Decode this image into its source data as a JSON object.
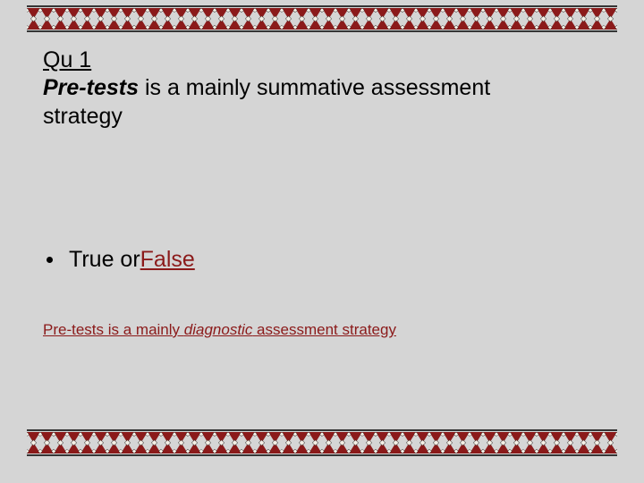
{
  "slide": {
    "background_color": "#d5d5d5",
    "border_pattern": {
      "colors": {
        "line": "#000000",
        "triangle_fill": "#8b1a1a",
        "diamond_fill": "#f5f0e6",
        "background": "#d5d5d5"
      },
      "unit_width": 30,
      "band_height": 30
    },
    "heading": {
      "line1": "Qu 1",
      "line2_emph": "Pre-tests",
      "line2_rest": " is a mainly summative assessment",
      "line3": "strategy",
      "fontsize": 25,
      "color": "#000000"
    },
    "bullet": {
      "prefix": "True or ",
      "false_word": "False",
      "fontsize": 25,
      "false_color": "#8b1a1a"
    },
    "answer": {
      "pre": "Pre-tests is a mainly ",
      "emph": "diagnostic",
      "post": " assessment strategy",
      "fontsize": 17,
      "color": "#8b1a1a"
    }
  }
}
